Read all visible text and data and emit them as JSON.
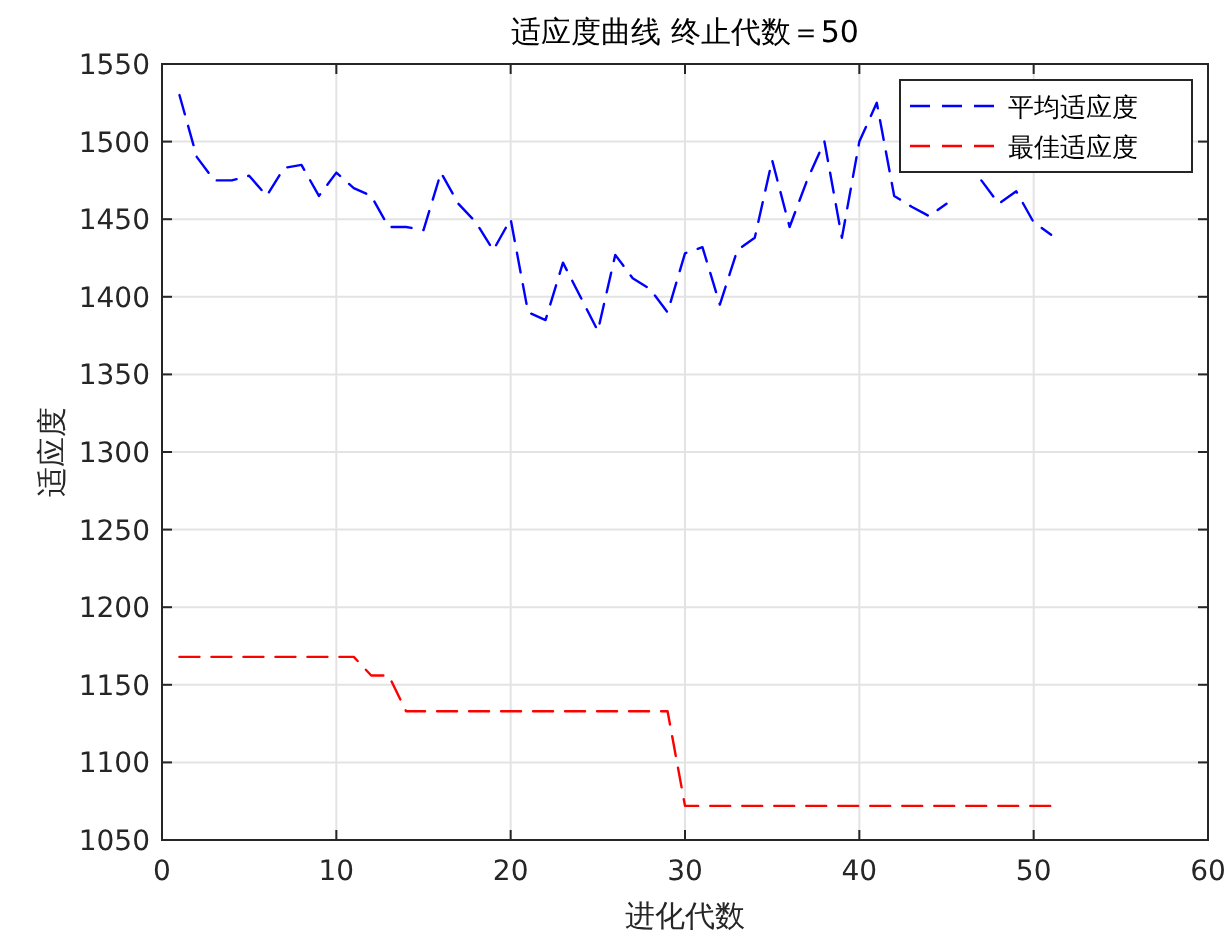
{
  "chart_data": {
    "type": "line",
    "title": "适应度曲线  终止代数＝50",
    "xlabel": "进化代数",
    "ylabel": "适应度",
    "x": [
      1,
      2,
      3,
      4,
      5,
      6,
      7,
      8,
      9,
      10,
      11,
      12,
      13,
      14,
      15,
      16,
      17,
      18,
      19,
      20,
      21,
      22,
      23,
      24,
      25,
      26,
      27,
      28,
      29,
      30,
      31,
      32,
      33,
      34,
      35,
      36,
      37,
      38,
      39,
      40,
      41,
      42,
      43,
      44,
      45,
      46,
      47,
      48,
      49,
      50,
      51
    ],
    "series": [
      {
        "name": "平均适应度",
        "color": "#0000ff",
        "values": [
          1530,
          1490,
          1475,
          1475,
          1478,
          1465,
          1483,
          1485,
          1465,
          1480,
          1470,
          1465,
          1445,
          1445,
          1443,
          1480,
          1460,
          1448,
          1430,
          1450,
          1390,
          1385,
          1422,
          1400,
          1378,
          1427,
          1412,
          1405,
          1390,
          1428,
          1432,
          1395,
          1430,
          1438,
          1488,
          1445,
          1475,
          1500,
          1438,
          1500,
          1525,
          1465,
          1458,
          1452,
          1460,
          null,
          1475,
          1460,
          1468,
          1448,
          1440
        ]
      },
      {
        "name": "最佳适应度",
        "color": "#ff0000",
        "values": [
          1168,
          1168,
          1168,
          1168,
          1168,
          1168,
          1168,
          1168,
          1168,
          1168,
          1168,
          1156,
          1156,
          1133,
          1133,
          1133,
          1133,
          1133,
          1133,
          1133,
          1133,
          1133,
          1133,
          1133,
          1133,
          1133,
          1133,
          1133,
          1133,
          1072,
          1072,
          1072,
          1072,
          1072,
          1072,
          1072,
          1072,
          1072,
          1072,
          1072,
          1072,
          1072,
          1072,
          1072,
          1072,
          1072,
          1072,
          1072,
          1072,
          1072,
          1072
        ]
      }
    ],
    "xlim": [
      0,
      60
    ],
    "xticks": [
      0,
      10,
      20,
      30,
      40,
      50,
      60
    ],
    "ylim": [
      1050,
      1550
    ],
    "yticks": [
      1050,
      1100,
      1150,
      1200,
      1250,
      1300,
      1350,
      1400,
      1450,
      1500,
      1550
    ],
    "grid": true,
    "legend": "top right",
    "line_style": "dashed",
    "marker": "none"
  }
}
